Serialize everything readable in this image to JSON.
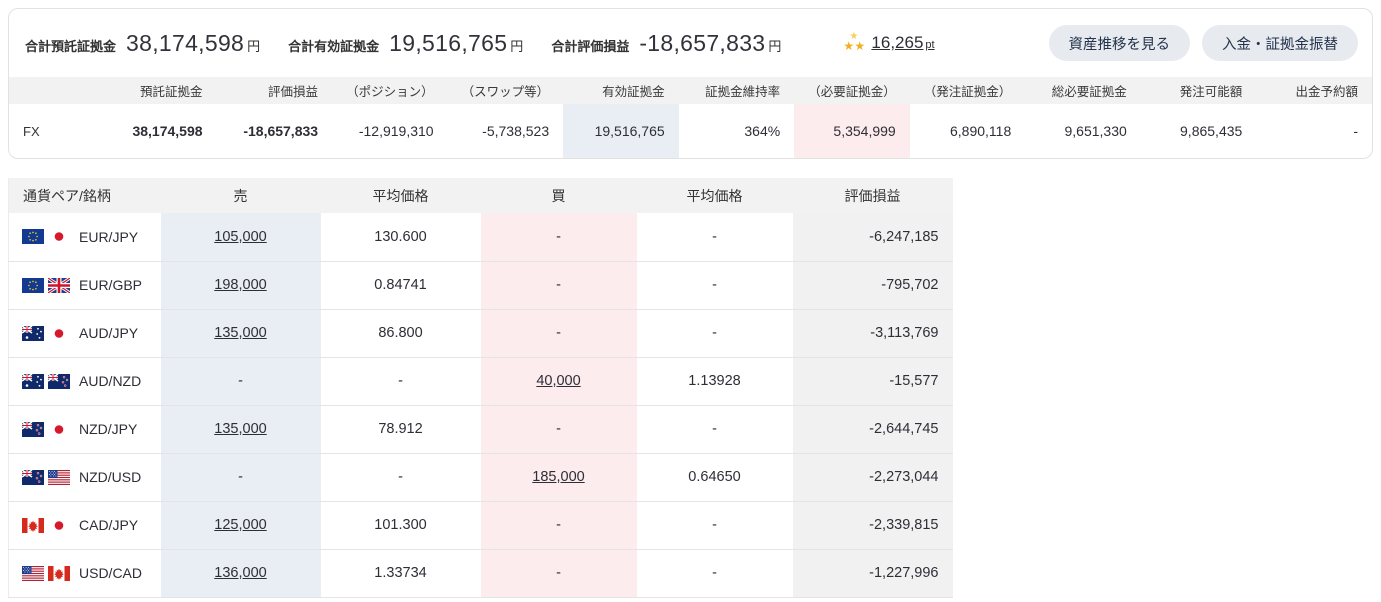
{
  "summary": {
    "items": [
      {
        "label": "合計預託証拠金",
        "value": "38,174,598",
        "unit": "円"
      },
      {
        "label": "合計有効証拠金",
        "value": "19,516,765",
        "unit": "円"
      },
      {
        "label": "合計評価損益",
        "value": "-18,657,833",
        "unit": "円"
      }
    ],
    "points": {
      "value": "16,265",
      "unit": "pt"
    },
    "buttons": [
      {
        "label": "資産推移を見る"
      },
      {
        "label": "入金・証拠金振替"
      }
    ]
  },
  "margin_table": {
    "columns": [
      "預託証拠金",
      "評価損益",
      "（ポジション）",
      "（スワップ等）",
      "有効証拠金",
      "証拠金維持率",
      "（必要証拠金）",
      "（発注証拠金）",
      "総必要証拠金",
      "発注可能額",
      "出金予約額"
    ],
    "row_label": "FX",
    "values": [
      "38,174,598",
      "-18,657,833",
      "-12,919,310",
      "-5,738,523",
      "19,516,765",
      "364%",
      "5,354,999",
      "6,890,118",
      "9,651,330",
      "9,865,435",
      "-"
    ],
    "bold_value_columns": [
      0,
      1
    ],
    "highlight_columns": {
      "4": "blue",
      "6": "pink"
    }
  },
  "positions_table": {
    "columns": [
      "通貨ペア/銘柄",
      "売",
      "平均価格",
      "買",
      "平均価格",
      "評価損益"
    ],
    "rows": [
      {
        "pair": "EUR/JPY",
        "flags": [
          "EU",
          "JP"
        ],
        "sell": "105,000",
        "sell_avg": "130.600",
        "buy": "-",
        "buy_avg": "-",
        "pl": "-6,247,185"
      },
      {
        "pair": "EUR/GBP",
        "flags": [
          "EU",
          "GB"
        ],
        "sell": "198,000",
        "sell_avg": "0.84741",
        "buy": "-",
        "buy_avg": "-",
        "pl": "-795,702"
      },
      {
        "pair": "AUD/JPY",
        "flags": [
          "AU",
          "JP"
        ],
        "sell": "135,000",
        "sell_avg": "86.800",
        "buy": "-",
        "buy_avg": "-",
        "pl": "-3,113,769"
      },
      {
        "pair": "AUD/NZD",
        "flags": [
          "AU",
          "NZ"
        ],
        "sell": "-",
        "sell_avg": "-",
        "buy": "40,000",
        "buy_avg": "1.13928",
        "pl": "-15,577"
      },
      {
        "pair": "NZD/JPY",
        "flags": [
          "NZ",
          "JP"
        ],
        "sell": "135,000",
        "sell_avg": "78.912",
        "buy": "-",
        "buy_avg": "-",
        "pl": "-2,644,745"
      },
      {
        "pair": "NZD/USD",
        "flags": [
          "NZ",
          "US"
        ],
        "sell": "-",
        "sell_avg": "-",
        "buy": "185,000",
        "buy_avg": "0.64650",
        "pl": "-2,273,044"
      },
      {
        "pair": "CAD/JPY",
        "flags": [
          "CA",
          "JP"
        ],
        "sell": "125,000",
        "sell_avg": "101.300",
        "buy": "-",
        "buy_avg": "-",
        "pl": "-2,339,815"
      },
      {
        "pair": "USD/CAD",
        "flags": [
          "US",
          "CA"
        ],
        "sell": "136,000",
        "sell_avg": "1.33734",
        "buy": "-",
        "buy_avg": "-",
        "pl": "-1,227,996"
      }
    ]
  },
  "colors": {
    "accent_blue_cell": "#e9eef5",
    "accent_pink_cell": "#fcecee",
    "pl_gray_cell": "#f1f1f1",
    "header_gray": "#f2f2f2",
    "button_bg": "#e7eaee",
    "button_text": "#24344d",
    "star_gold": "#f0b01e"
  }
}
